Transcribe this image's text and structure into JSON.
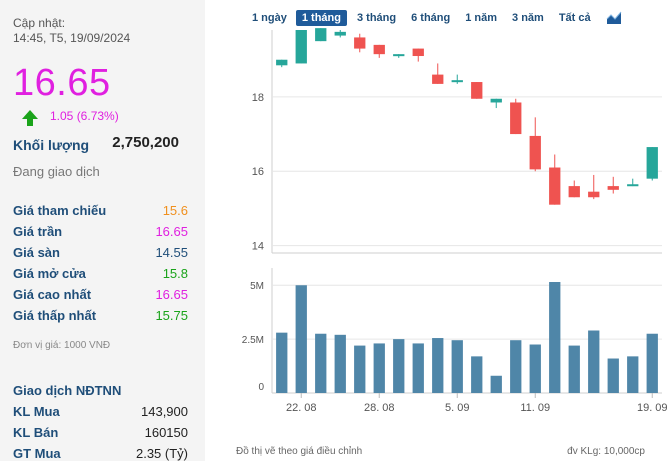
{
  "info": {
    "updated_label": "Cập nhật:",
    "updated_time": "14:45, T5, 19/09/2024",
    "price": "16.65",
    "change": "1.05 (6.73%)",
    "volume_label": "Khối lượng",
    "volume_value": "2,750,200",
    "status": "Đang giao dịch",
    "rows": [
      {
        "label": "Giá tham chiếu",
        "value": "15.6",
        "color": "#f0901e"
      },
      {
        "label": "Giá trần",
        "value": "16.65",
        "color": "#e020e0"
      },
      {
        "label": "Giá sàn",
        "value": "14.55",
        "color": "#1f4e79"
      },
      {
        "label": "Giá mở cửa",
        "value": "15.8",
        "color": "#1aa31a"
      },
      {
        "label": "Giá cao nhất",
        "value": "16.65",
        "color": "#e020e0"
      },
      {
        "label": "Giá thấp nhất",
        "value": "15.75",
        "color": "#1aa31a"
      }
    ],
    "unit_note": "Đơn vị giá: 1000 VNĐ",
    "foreign_title": "Giao dịch NĐTNN",
    "foreign_rows": [
      {
        "label": "KL Mua",
        "value": "143,900"
      },
      {
        "label": "KL Bán",
        "value": "160150"
      },
      {
        "label": "GT Mua",
        "value": "2.35 (Tỷ)"
      }
    ]
  },
  "tabs": [
    "1 ngày",
    "1 tháng",
    "3 tháng",
    "6 tháng",
    "1 năm",
    "3 năm",
    "Tất cả"
  ],
  "active_tab": "1 tháng",
  "chart_icon": "area-chart-icon",
  "colors": {
    "up": "#26a69a",
    "down": "#ef5350",
    "volume": "#4f86a8",
    "accent": "#1f5b9a"
  },
  "chart_data": {
    "type": "candlestick",
    "price_axis": {
      "ticks": [
        14,
        16,
        18
      ],
      "range": [
        13.8,
        19.8
      ]
    },
    "volume_axis": {
      "ticks": [
        {
          "value": 0,
          "label": "0"
        },
        {
          "value": 2.5,
          "label": "2.5M"
        },
        {
          "value": 5,
          "label": "5M"
        }
      ],
      "range": [
        0,
        5.8
      ]
    },
    "x_labels": [
      {
        "label": "22. 08",
        "index": 1
      },
      {
        "label": "28. 08",
        "index": 5
      },
      {
        "label": "5. 09",
        "index": 9
      },
      {
        "label": "11. 09",
        "index": 13
      },
      {
        "label": "19. 09",
        "index": 19
      }
    ],
    "candles": [
      {
        "o": 18.85,
        "c": 19.0,
        "h": 19.0,
        "l": 18.8,
        "v": 2.8
      },
      {
        "o": 18.9,
        "c": 19.8,
        "h": 19.8,
        "l": 18.9,
        "v": 5.0
      },
      {
        "o": 19.5,
        "c": 19.85,
        "h": 19.85,
        "l": 19.5,
        "v": 2.75
      },
      {
        "o": 19.65,
        "c": 19.75,
        "h": 19.8,
        "l": 19.6,
        "v": 2.7
      },
      {
        "o": 19.6,
        "c": 19.3,
        "h": 19.7,
        "l": 19.2,
        "v": 2.2
      },
      {
        "o": 19.4,
        "c": 19.15,
        "h": 19.4,
        "l": 19.05,
        "v": 2.3
      },
      {
        "o": 19.1,
        "c": 19.15,
        "h": 19.15,
        "l": 19.05,
        "v": 2.5
      },
      {
        "o": 19.3,
        "c": 19.1,
        "h": 19.3,
        "l": 18.95,
        "v": 2.3
      },
      {
        "o": 18.6,
        "c": 18.35,
        "h": 18.9,
        "l": 18.35,
        "v": 2.55
      },
      {
        "o": 18.45,
        "c": 18.45,
        "h": 18.6,
        "l": 18.35,
        "v": 2.45
      },
      {
        "o": 18.4,
        "c": 17.95,
        "h": 18.4,
        "l": 17.95,
        "v": 1.7
      },
      {
        "o": 17.85,
        "c": 17.95,
        "h": 17.95,
        "l": 17.7,
        "v": 0.8
      },
      {
        "o": 17.85,
        "c": 17.0,
        "h": 17.95,
        "l": 17.0,
        "v": 2.45
      },
      {
        "o": 16.95,
        "c": 16.05,
        "h": 17.45,
        "l": 16.0,
        "v": 2.25
      },
      {
        "o": 16.1,
        "c": 15.1,
        "h": 16.45,
        "l": 15.1,
        "v": 5.15
      },
      {
        "o": 15.6,
        "c": 15.3,
        "h": 15.75,
        "l": 15.3,
        "v": 2.2
      },
      {
        "o": 15.45,
        "c": 15.3,
        "h": 15.9,
        "l": 15.25,
        "v": 2.9
      },
      {
        "o": 15.6,
        "c": 15.5,
        "h": 15.85,
        "l": 15.4,
        "v": 1.6
      },
      {
        "o": 15.6,
        "c": 15.65,
        "h": 15.8,
        "l": 15.6,
        "v": 1.7
      },
      {
        "o": 15.8,
        "c": 16.65,
        "h": 16.65,
        "l": 15.75,
        "v": 2.75
      }
    ]
  },
  "footer": {
    "left_note": "Đồ thị vẽ theo giá điều chỉnh",
    "right_note": "đv KLg: 10,000cp"
  }
}
